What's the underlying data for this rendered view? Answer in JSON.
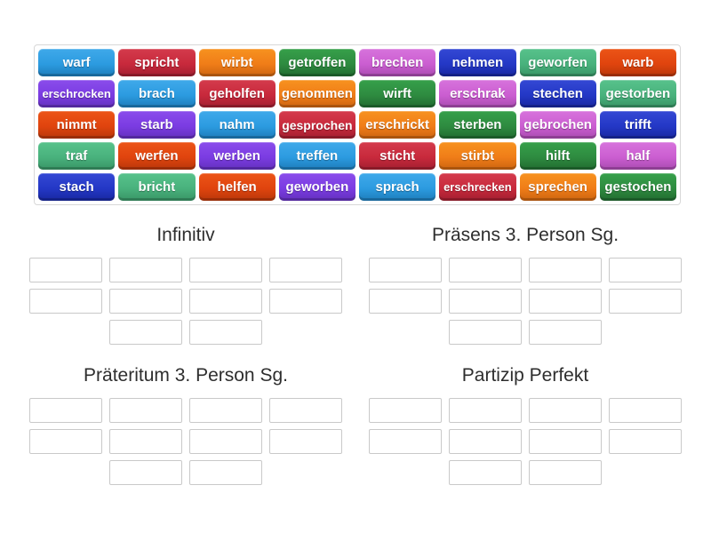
{
  "palette": {
    "blue": {
      "light": "#3fa9ea",
      "base": "#2c9be0",
      "dark": "#1d7cba"
    },
    "crimson": {
      "light": "#d43b4c",
      "base": "#c8293c",
      "dark": "#a21f30"
    },
    "orange": {
      "light": "#f7921f",
      "base": "#f07d18",
      "dark": "#cc6410"
    },
    "green": {
      "light": "#36a04a",
      "base": "#2e8b40",
      "dark": "#216b30"
    },
    "orchid": {
      "light": "#d773dc",
      "base": "#cb5ed1",
      "dark": "#a94bb0"
    },
    "darkblue": {
      "light": "#3448d4",
      "base": "#2438c6",
      "dark": "#1827a0"
    },
    "seagreen": {
      "light": "#57c28b",
      "base": "#49b27d",
      "dark": "#389465"
    },
    "vermillion": {
      "light": "#ec5517",
      "base": "#e0440e",
      "dark": "#b8370a"
    },
    "purple": {
      "light": "#8a4ceb",
      "base": "#7b3ce2",
      "dark": "#6330bd"
    }
  },
  "bank": {
    "tiles": [
      {
        "label": "warf",
        "color": "blue"
      },
      {
        "label": "spricht",
        "color": "crimson"
      },
      {
        "label": "wirbt",
        "color": "orange"
      },
      {
        "label": "getroffen",
        "color": "green"
      },
      {
        "label": "brechen",
        "color": "orchid"
      },
      {
        "label": "nehmen",
        "color": "darkblue"
      },
      {
        "label": "geworfen",
        "color": "seagreen"
      },
      {
        "label": "warb",
        "color": "vermillion"
      },
      {
        "label": "erschrocken",
        "color": "purple"
      },
      {
        "label": "brach",
        "color": "blue"
      },
      {
        "label": "geholfen",
        "color": "crimson"
      },
      {
        "label": "genommen",
        "color": "orange"
      },
      {
        "label": "wirft",
        "color": "green"
      },
      {
        "label": "erschrak",
        "color": "orchid"
      },
      {
        "label": "stechen",
        "color": "darkblue"
      },
      {
        "label": "gestorben",
        "color": "seagreen"
      },
      {
        "label": "nimmt",
        "color": "vermillion"
      },
      {
        "label": "starb",
        "color": "purple"
      },
      {
        "label": "nahm",
        "color": "blue"
      },
      {
        "label": "gesprochen",
        "color": "crimson"
      },
      {
        "label": "erschrickt",
        "color": "orange"
      },
      {
        "label": "sterben",
        "color": "green"
      },
      {
        "label": "gebrochen",
        "color": "orchid"
      },
      {
        "label": "trifft",
        "color": "darkblue"
      },
      {
        "label": "traf",
        "color": "seagreen"
      },
      {
        "label": "werfen",
        "color": "vermillion"
      },
      {
        "label": "werben",
        "color": "purple"
      },
      {
        "label": "treffen",
        "color": "blue"
      },
      {
        "label": "sticht",
        "color": "crimson"
      },
      {
        "label": "stirbt",
        "color": "orange"
      },
      {
        "label": "hilft",
        "color": "green"
      },
      {
        "label": "half",
        "color": "orchid"
      },
      {
        "label": "stach",
        "color": "darkblue"
      },
      {
        "label": "bricht",
        "color": "seagreen"
      },
      {
        "label": "helfen",
        "color": "vermillion"
      },
      {
        "label": "geworben",
        "color": "purple"
      },
      {
        "label": "sprach",
        "color": "blue"
      },
      {
        "label": "erschrecken",
        "color": "crimson"
      },
      {
        "label": "sprechen",
        "color": "orange"
      },
      {
        "label": "gestochen",
        "color": "green"
      }
    ]
  },
  "groups": [
    {
      "title": "Infinitiv",
      "slot_rows": [
        4,
        4,
        2
      ]
    },
    {
      "title": "Präsens 3. Person Sg.",
      "slot_rows": [
        4,
        4,
        2
      ]
    },
    {
      "title": "Präteritum 3. Person Sg.",
      "slot_rows": [
        4,
        4,
        2
      ]
    },
    {
      "title": "Partizip Perfekt",
      "slot_rows": [
        4,
        4,
        2
      ]
    }
  ]
}
